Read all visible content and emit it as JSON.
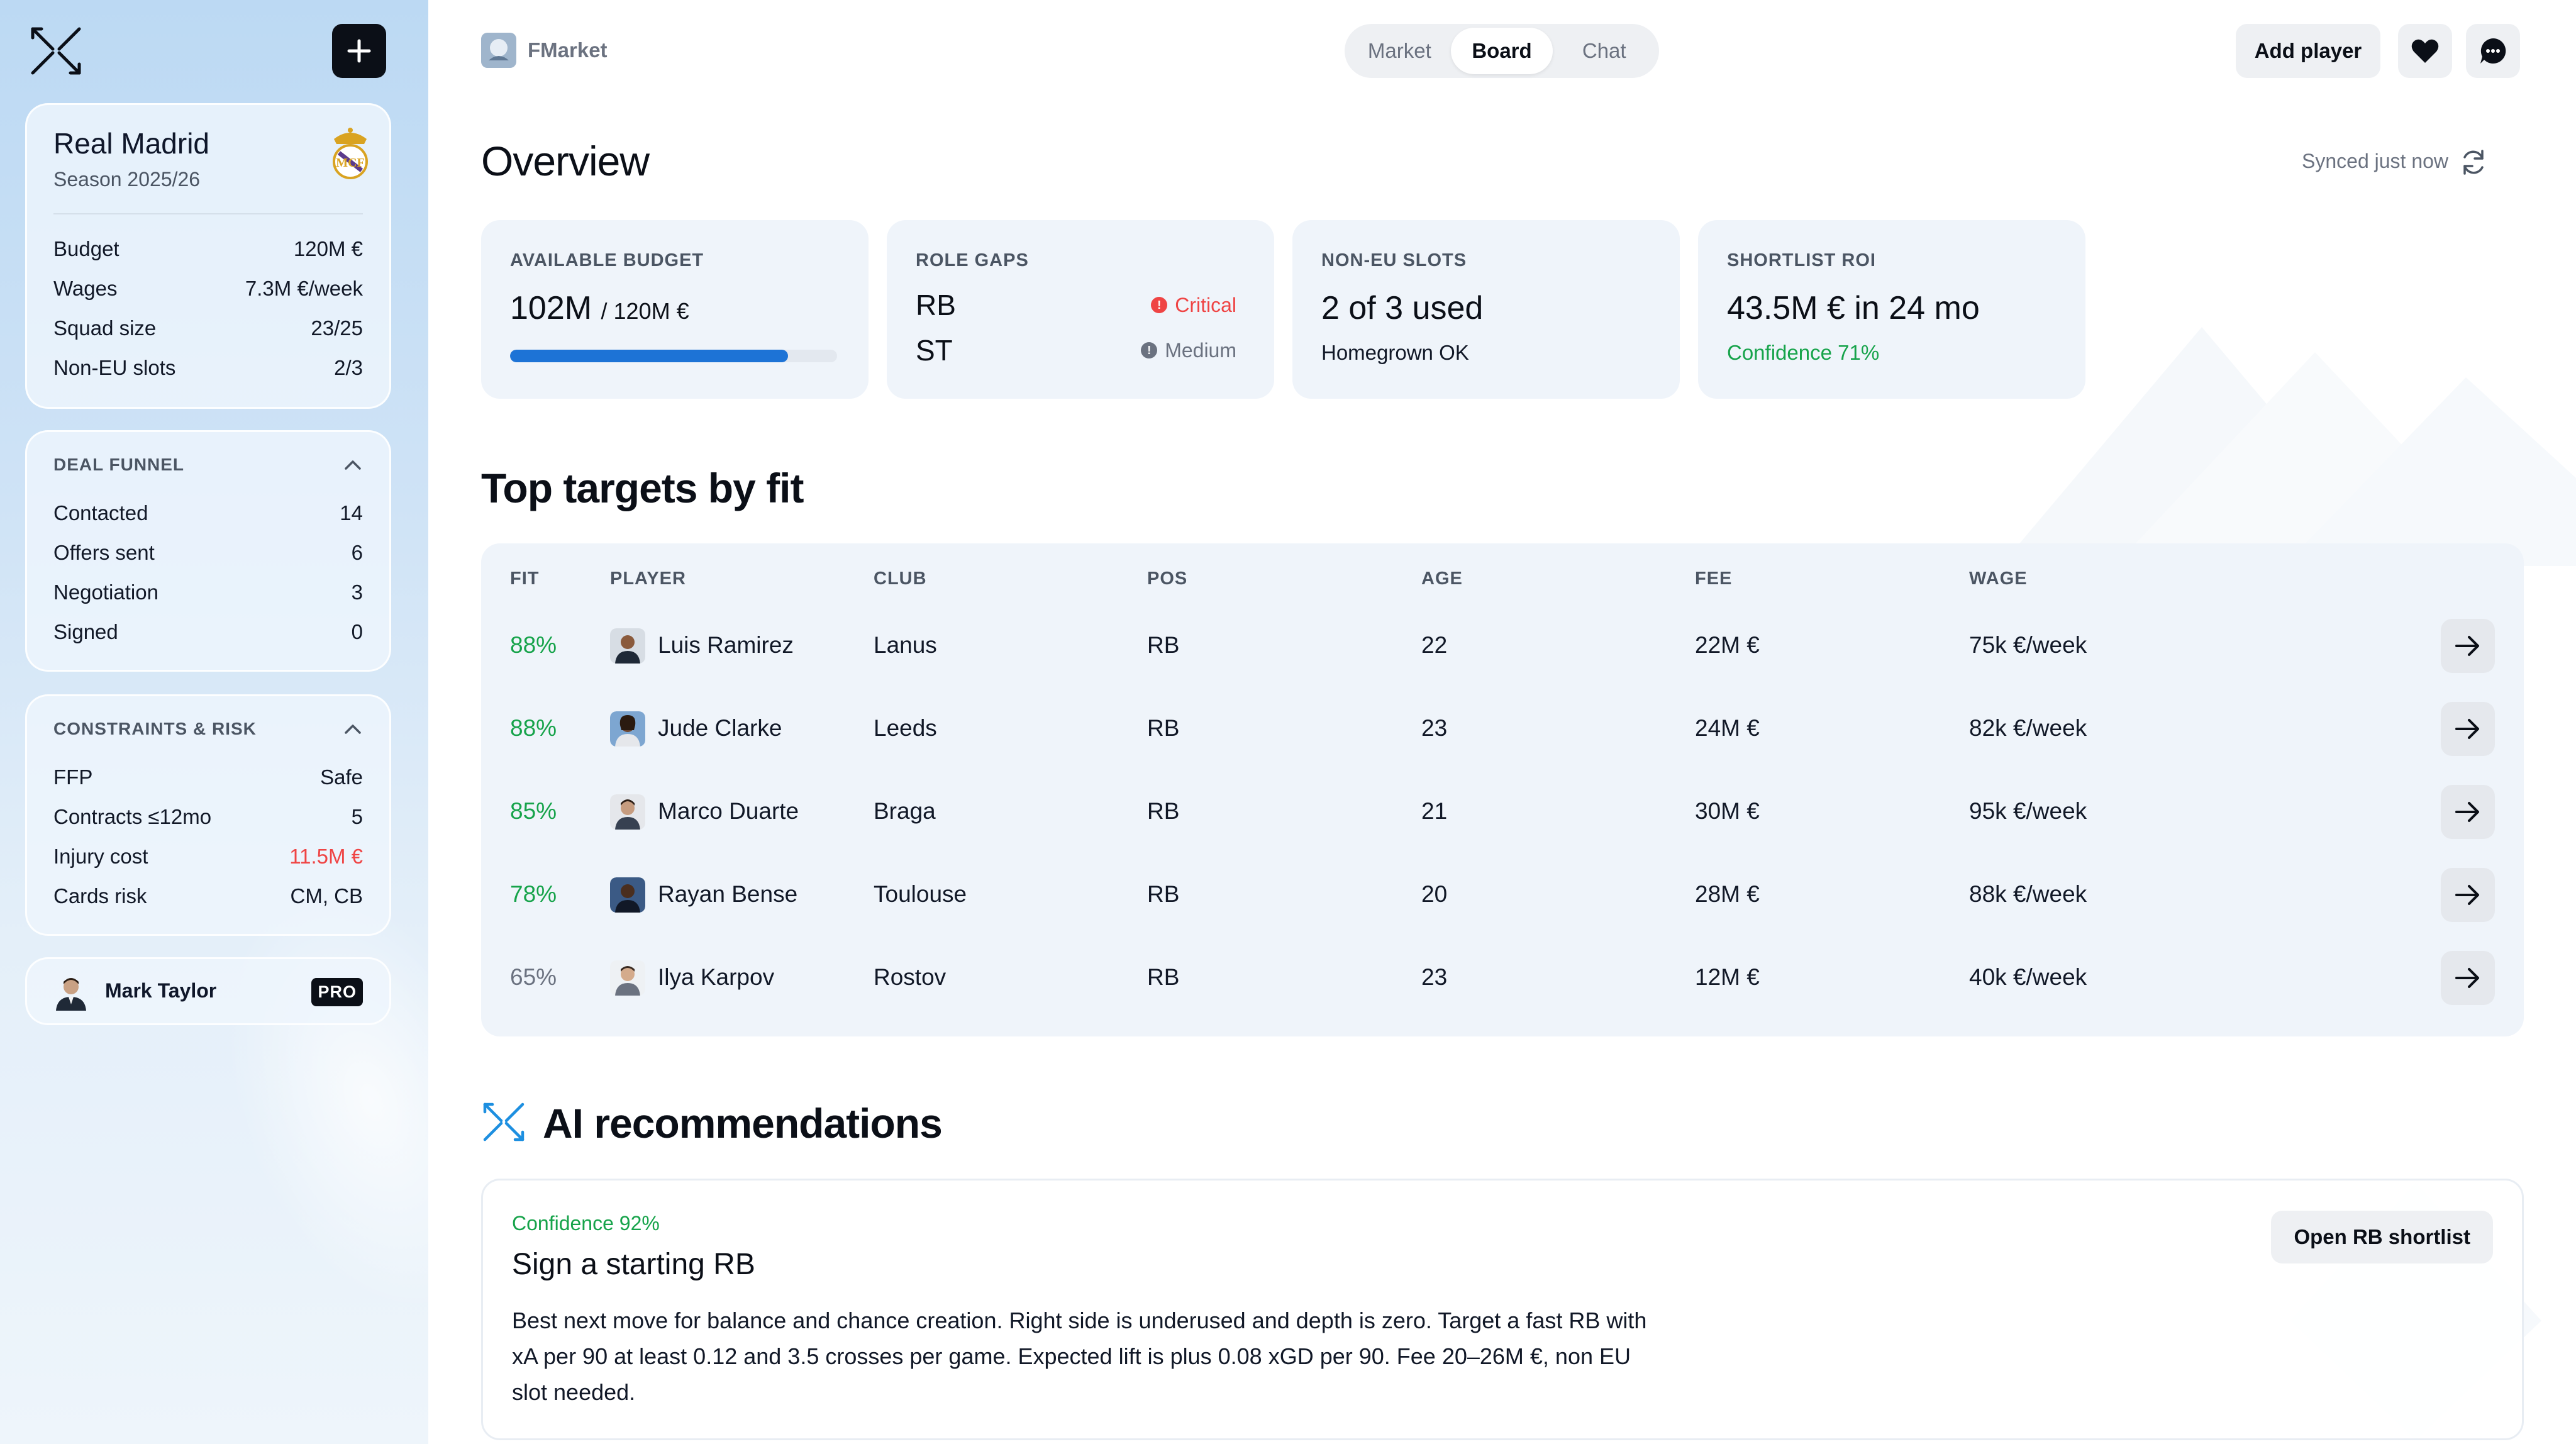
{
  "sidebar": {
    "club": {
      "name": "Real Madrid",
      "season": "Season 2025/26",
      "stats": [
        {
          "label": "Budget",
          "value": "120M €"
        },
        {
          "label": "Wages",
          "value": "7.3M €/week"
        },
        {
          "label": "Squad size",
          "value": "23/25"
        },
        {
          "label": "Non-EU slots",
          "value": "2/3"
        }
      ]
    },
    "funnel": {
      "title": "DEAL FUNNEL",
      "items": [
        {
          "label": "Contacted",
          "value": "14"
        },
        {
          "label": "Offers sent",
          "value": "6"
        },
        {
          "label": "Negotiation",
          "value": "3"
        },
        {
          "label": "Signed",
          "value": "0"
        }
      ]
    },
    "risk": {
      "title": "CONSTRAINTS & RISK",
      "items": [
        {
          "label": "FFP",
          "value": "Safe"
        },
        {
          "label": "Contracts ≤12mo",
          "value": "5"
        },
        {
          "label": "Injury cost",
          "value": "11.5M €",
          "color": "#ef4444"
        },
        {
          "label": "Cards risk",
          "value": "CM, CB"
        }
      ]
    },
    "user": {
      "name": "Mark Taylor",
      "badge": "PRO"
    }
  },
  "header": {
    "brand": "FMarket",
    "tabs": [
      {
        "label": "Market",
        "active": false
      },
      {
        "label": "Board",
        "active": true
      },
      {
        "label": "Chat",
        "active": false
      }
    ],
    "add_player": "Add player"
  },
  "overview": {
    "title": "Overview",
    "synced": "Synced just now",
    "kpis": {
      "budget": {
        "label": "AVAILABLE BUDGET",
        "value": "102M",
        "total": "/ 120M €",
        "fill_fraction": 0.85
      },
      "gaps": {
        "label": "ROLE GAPS",
        "items": [
          {
            "role": "RB",
            "severity": "Critical",
            "color": "#ef4444"
          },
          {
            "role": "ST",
            "severity": "Medium",
            "color": "#6b7280"
          }
        ]
      },
      "noneu": {
        "label": "NON-EU SLOTS",
        "value": "2 of 3 used",
        "sub": "Homegrown OK"
      },
      "roi": {
        "label": "SHORTLIST ROI",
        "value": "43.5M € in 24 mo",
        "sub": "Confidence 71%"
      }
    }
  },
  "targets": {
    "title": "Top targets by fit",
    "columns": [
      "FIT",
      "PLAYER",
      "CLUB",
      "POS",
      "AGE",
      "FEE",
      "WAGE"
    ],
    "rows": [
      {
        "fit": "88%",
        "player": "Luis Ramirez",
        "club": "Lanus",
        "pos": "RB",
        "age": "22",
        "fee": "22M €",
        "wage": "75k €/week"
      },
      {
        "fit": "88%",
        "player": "Jude Clarke",
        "club": "Leeds",
        "pos": "RB",
        "age": "23",
        "fee": "24M €",
        "wage": "82k €/week"
      },
      {
        "fit": "85%",
        "player": "Marco Duarte",
        "club": "Braga",
        "pos": "RB",
        "age": "21",
        "fee": "30M €",
        "wage": "95k €/week"
      },
      {
        "fit": "78%",
        "player": "Rayan Bense",
        "club": "Toulouse",
        "pos": "RB",
        "age": "20",
        "fee": "28M €",
        "wage": "88k €/week"
      },
      {
        "fit": "65%",
        "player": "Ilya Karpov",
        "club": "Rostov",
        "pos": "RB",
        "age": "23",
        "fee": "12M €",
        "wage": "40k €/week"
      }
    ]
  },
  "ai": {
    "title": "AI recommendations",
    "card": {
      "confidence": "Confidence 92%",
      "title": "Sign a starting RB",
      "body": "Best next move for balance and chance creation. Right side is underused and depth is zero. Target a fast RB with xA per 90 at least 0.12 and 3.5 crosses per game. Expected lift is plus 0.08 xGD per 90. Fee 20–26M €, non EU slot needed.",
      "button": "Open RB shortlist"
    }
  },
  "colors": {
    "accent": "#1d73d6",
    "positive": "#16a34a",
    "danger": "#ef4444"
  }
}
